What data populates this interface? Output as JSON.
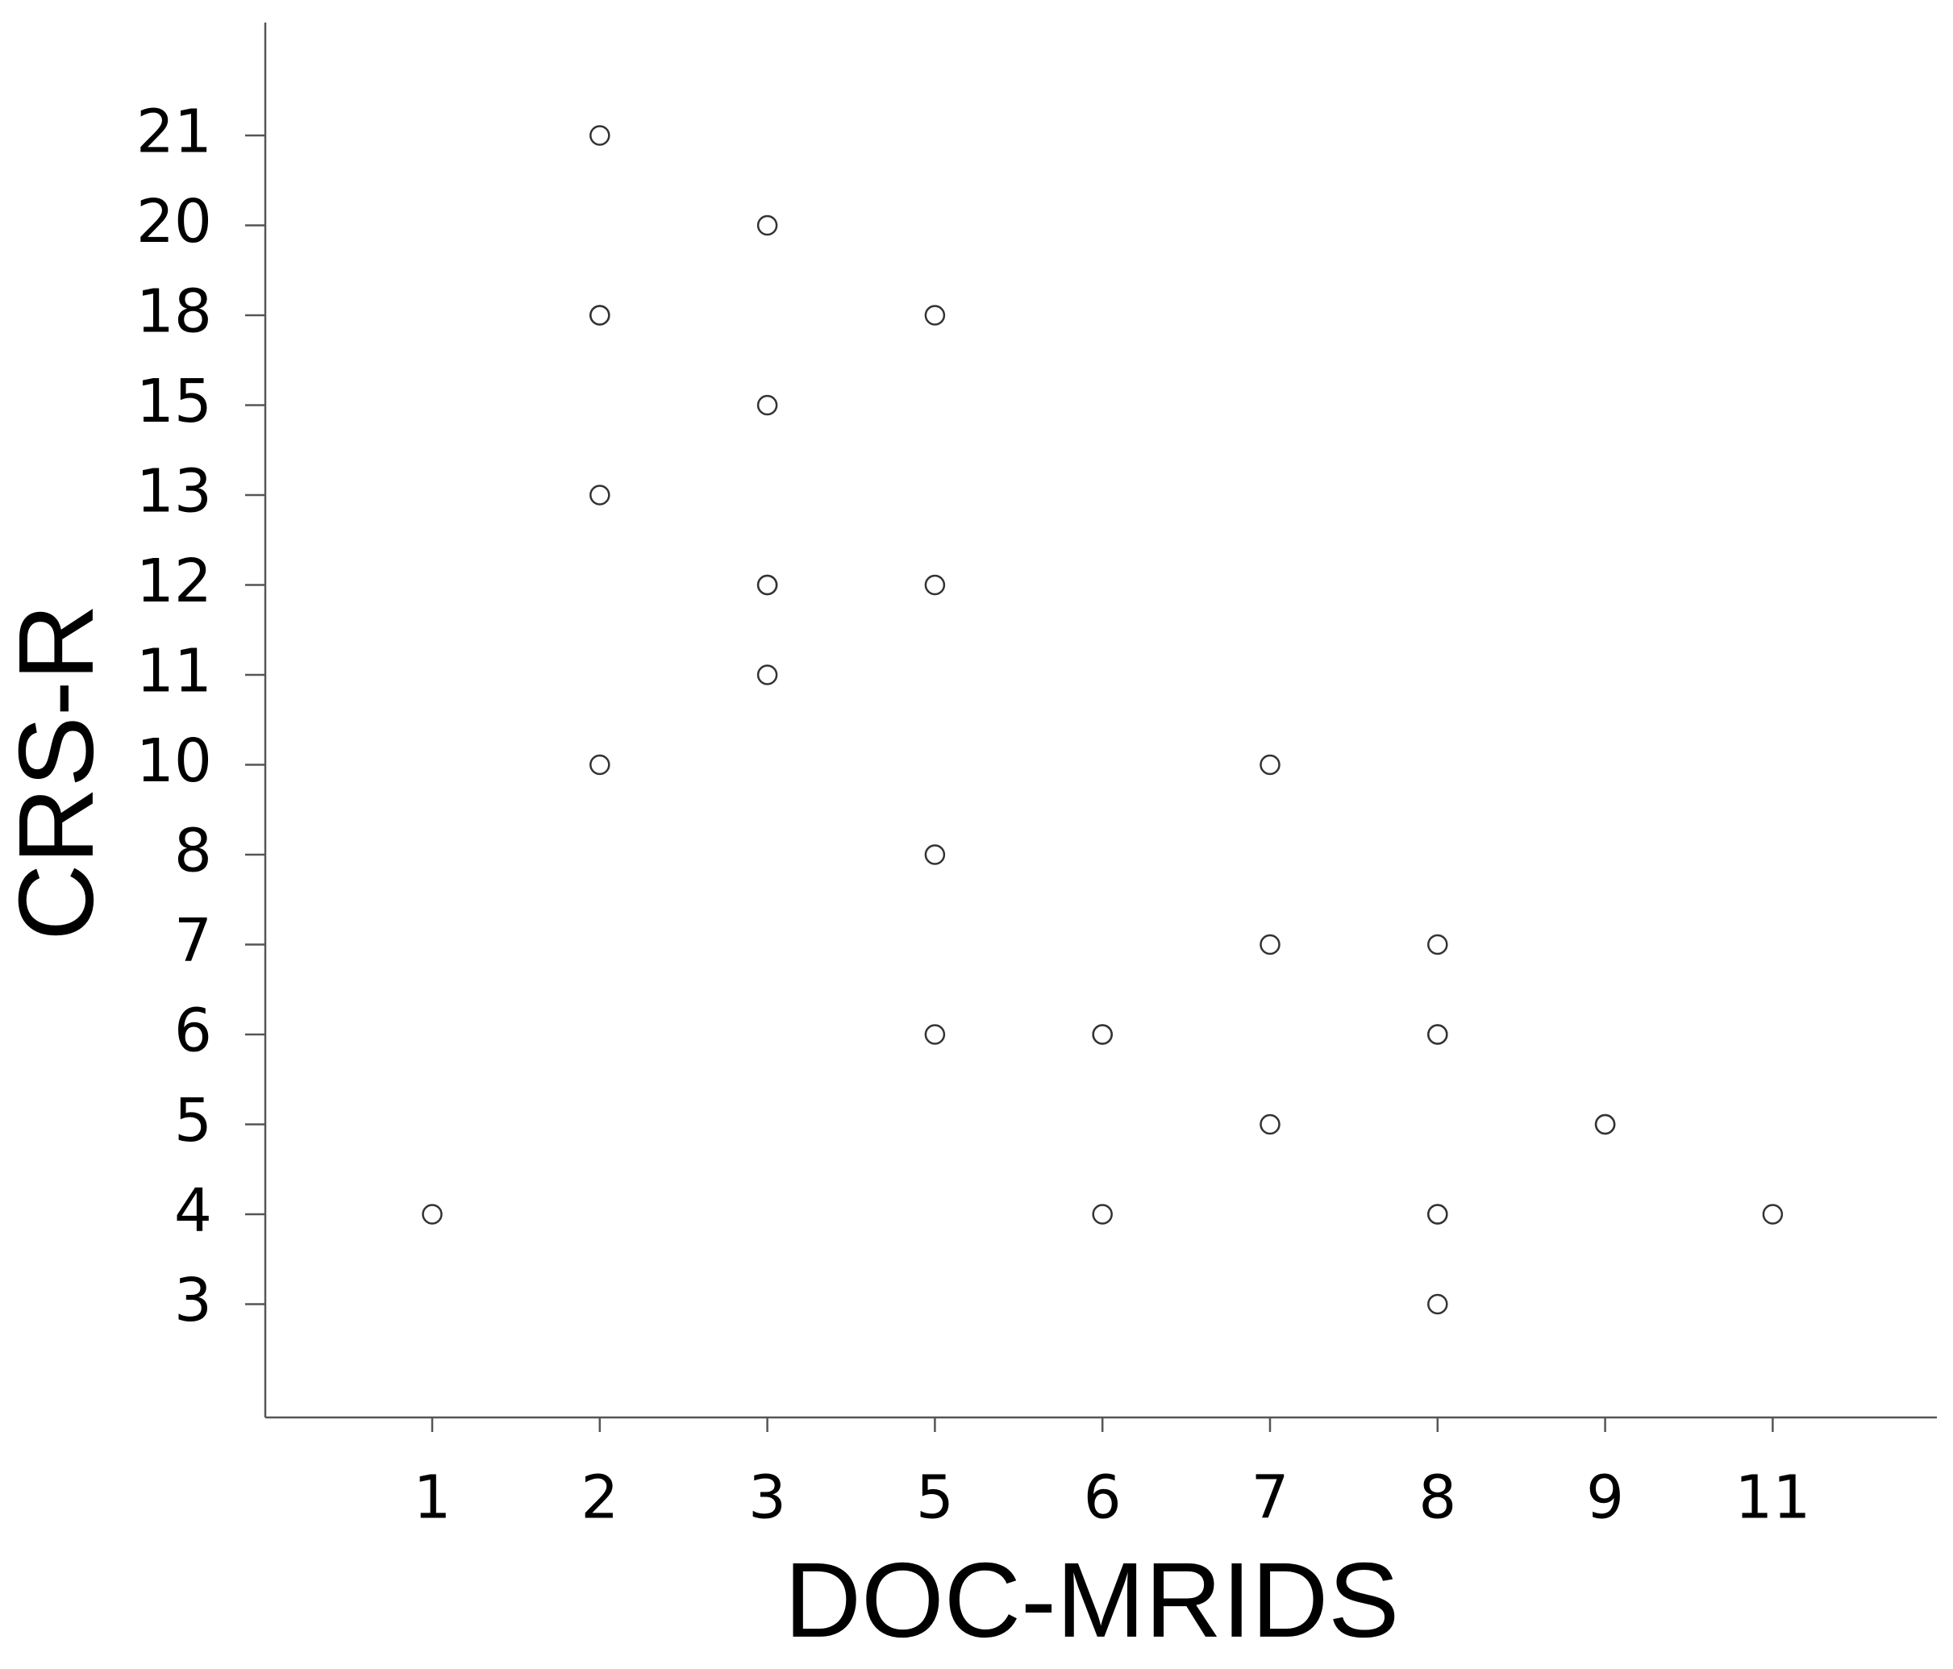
{
  "chart_data": {
    "type": "scatter",
    "x_label": "DOC-MRIDS",
    "y_label": "CRS-R",
    "x_scale": "ordinal",
    "y_scale": "ordinal",
    "xticks": [
      1,
      2,
      3,
      5,
      6,
      7,
      8,
      9,
      11
    ],
    "yticks": [
      3,
      4,
      5,
      6,
      7,
      8,
      10,
      11,
      12,
      13,
      15,
      18,
      20,
      21
    ],
    "color": "#333333",
    "x": [
      2,
      3,
      2,
      2,
      5,
      3,
      2,
      3,
      3,
      5,
      3,
      2,
      7,
      5,
      7,
      8,
      5,
      6,
      6,
      8,
      8,
      7,
      9,
      9,
      1,
      6,
      8,
      8,
      11,
      8
    ],
    "values": [
      21,
      20,
      18,
      18,
      18,
      15,
      13,
      12,
      12,
      12,
      11,
      10,
      10,
      8,
      7,
      7,
      6,
      6,
      6,
      6,
      6,
      5,
      5,
      5,
      4,
      4,
      4,
      4,
      4,
      3
    ]
  }
}
